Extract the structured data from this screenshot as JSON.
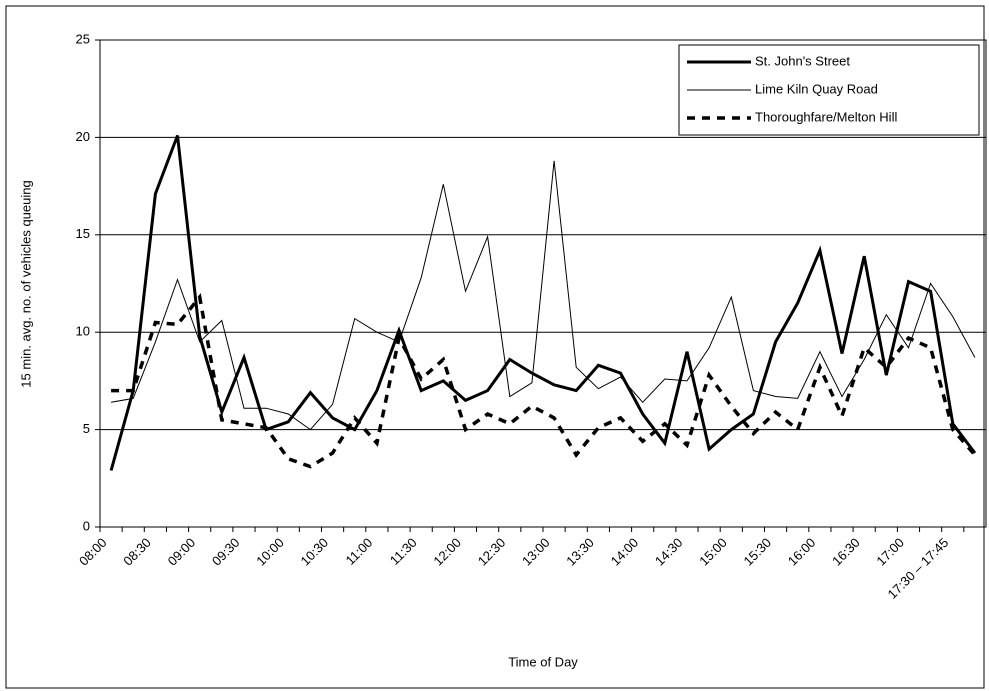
{
  "chart_data": {
    "type": "line",
    "x_label": "Time of Day",
    "y_label": "15 min. avg. no. of vehicles queuing",
    "categories": [
      "08:00",
      null,
      "08:30",
      null,
      "09:00",
      null,
      "09:30",
      null,
      "10:00",
      null,
      "10:30",
      null,
      "11:00",
      null,
      "11:30",
      null,
      "12:00",
      null,
      "12:30",
      null,
      "13:00",
      null,
      "13:30",
      null,
      "14:00",
      null,
      "14:30",
      null,
      "15:00",
      null,
      "15:30",
      null,
      "16:00",
      null,
      "16:30",
      null,
      "17:00",
      null,
      "17:30 – 17:45",
      null
    ],
    "series": [
      {
        "name": "St. John's Street",
        "color": "#000000",
        "width": 3,
        "dash": "none",
        "values": [
          2.9,
          7.0,
          17.1,
          20.1,
          9.8,
          5.9,
          8.7,
          5.0,
          5.4,
          6.9,
          5.6,
          5.0,
          7.0,
          10.1,
          7.0,
          7.5,
          6.5,
          7.0,
          8.6,
          7.9,
          7.3,
          7.0,
          8.3,
          7.9,
          5.8,
          4.3,
          9.0,
          4.0,
          5.0,
          5.8,
          9.5,
          11.5,
          14.2,
          8.9,
          13.9,
          7.8,
          12.6,
          12.1,
          5.3,
          3.8
        ]
      },
      {
        "name": "Lime Kiln Quay Road",
        "color": "#000000",
        "width": 1,
        "dash": "none",
        "values": [
          6.4,
          6.6,
          9.5,
          12.7,
          9.5,
          10.6,
          6.1,
          6.1,
          5.8,
          5.0,
          6.3,
          10.7,
          10.0,
          9.5,
          12.8,
          17.6,
          12.1,
          14.9,
          6.7,
          7.4,
          18.8,
          8.2,
          7.1,
          7.7,
          6.4,
          7.6,
          7.5,
          9.2,
          11.8,
          7.0,
          6.7,
          6.6,
          9.0,
          6.7,
          8.6,
          10.9,
          9.2,
          12.5,
          10.8,
          8.7
        ]
      },
      {
        "name": "Thoroughfare/Melton Hill",
        "color": "#000000",
        "width": 3.5,
        "dash": "8,7",
        "values": [
          7.0,
          7.0,
          10.5,
          10.4,
          11.8,
          5.5,
          5.3,
          5.1,
          3.5,
          3.1,
          3.8,
          5.6,
          4.3,
          9.7,
          7.6,
          8.6,
          5.0,
          5.8,
          5.3,
          6.2,
          5.6,
          3.7,
          5.1,
          5.6,
          4.4,
          5.3,
          4.2,
          7.8,
          6.2,
          4.8,
          5.9,
          5.0,
          8.2,
          5.7,
          9.2,
          8.2,
          9.7,
          9.2,
          5.0,
          3.7
        ]
      }
    ],
    "ylim": [
      0,
      25
    ],
    "yticks": [
      0,
      5,
      10,
      15,
      20,
      25
    ],
    "grid": true,
    "legend": "top-right"
  }
}
